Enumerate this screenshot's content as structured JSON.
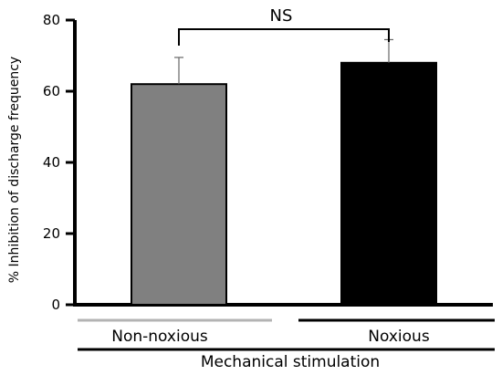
{
  "chart_data": {
    "type": "bar",
    "categories": [
      "Non-noxious",
      "Noxious"
    ],
    "values": [
      62,
      68
    ],
    "errors": [
      7.5,
      6.5
    ],
    "bar_colors": [
      "#808080",
      "#000000"
    ],
    "category_underline_colors": [
      "#b3b3b3",
      "#000000"
    ],
    "title": "",
    "xlabel": "Mechanical stimulation",
    "ylabel": "% Inhibition of discharge frequency",
    "ylim": [
      0,
      80
    ],
    "yticks": [
      0,
      20,
      40,
      60,
      80
    ],
    "annotation": "NS",
    "grid": false
  }
}
